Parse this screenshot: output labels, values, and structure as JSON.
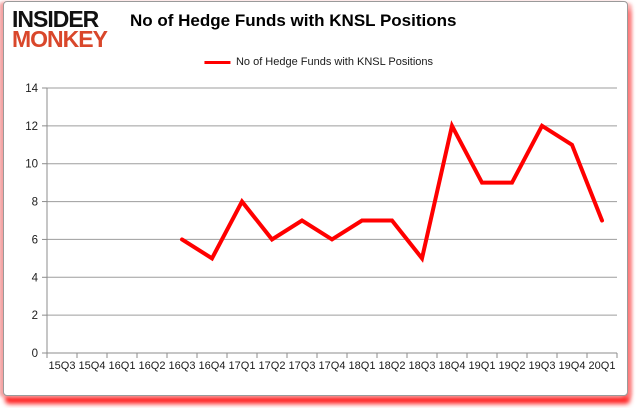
{
  "logo": {
    "line1": "INSIDER",
    "line2": "MONKEY"
  },
  "header": {
    "title": "No of Hedge Funds with KNSL Positions"
  },
  "legend": {
    "label": "No of Hedge Funds with KNSL Positions"
  },
  "chart_data": {
    "type": "line",
    "title": "No of Hedge Funds with KNSL Positions",
    "categories": [
      "15Q3",
      "15Q4",
      "16Q1",
      "16Q2",
      "16Q3",
      "16Q4",
      "17Q1",
      "17Q2",
      "17Q3",
      "17Q4",
      "18Q1",
      "18Q2",
      "18Q3",
      "18Q4",
      "19Q1",
      "19Q2",
      "19Q3",
      "19Q4",
      "20Q1"
    ],
    "series": [
      {
        "name": "No of Hedge Funds with KNSL Positions",
        "color": "#ff0000",
        "values": [
          null,
          null,
          null,
          null,
          6,
          5,
          8,
          6,
          7,
          6,
          7,
          7,
          5,
          12,
          9,
          9,
          12,
          11,
          7
        ]
      }
    ],
    "xlabel": "",
    "ylabel": "",
    "ylim": [
      0,
      14
    ],
    "yticks": [
      0,
      2,
      4,
      6,
      8,
      10,
      12,
      14
    ],
    "grid": true,
    "legend_position": "top"
  },
  "colors": {
    "line": "#ff0000",
    "grid": "#9d9d9d",
    "axis": "#8c8c8c",
    "text": "#1c1c1c",
    "logo_insider": "#111111",
    "logo_monkey": "#d9472b"
  }
}
